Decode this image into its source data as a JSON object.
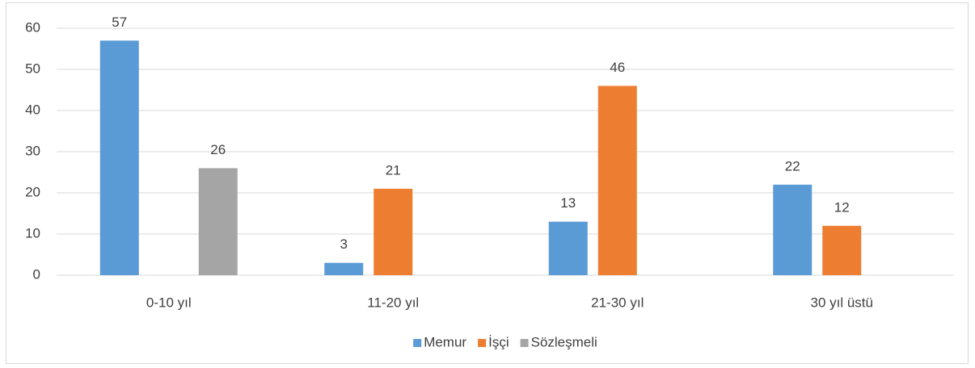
{
  "chart_data": {
    "type": "bar",
    "categories": [
      "0-10 yıl",
      "11-20 yıl",
      "21-30 yıl",
      "30 yıl üstü"
    ],
    "series": [
      {
        "name": "Memur",
        "color": "#5b9bd5",
        "values": [
          57,
          3,
          13,
          22
        ]
      },
      {
        "name": "İşçi",
        "color": "#ed7d31",
        "values": [
          null,
          21,
          46,
          12
        ]
      },
      {
        "name": "Sözleşmeli",
        "color": "#a5a5a5",
        "values": [
          26,
          null,
          null,
          null
        ]
      }
    ],
    "ylim": [
      0,
      60
    ],
    "yticks": [
      0,
      10,
      20,
      30,
      40,
      50,
      60
    ],
    "grid": true,
    "legend": "bottom"
  }
}
